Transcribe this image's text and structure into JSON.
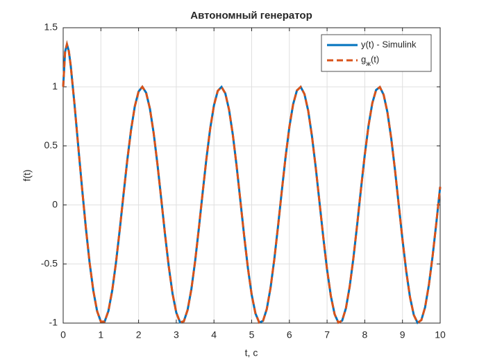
{
  "chart_data": {
    "type": "line",
    "title": "Автономный генератор",
    "xlabel": "t, c",
    "ylabel": "f(t)",
    "x": [
      0,
      0.05,
      0.1,
      0.15,
      0.2,
      0.3,
      0.4,
      0.5,
      0.6,
      0.7,
      0.8,
      0.9,
      1.0,
      1.1,
      1.2,
      1.3,
      1.4,
      1.5,
      1.6,
      1.7,
      1.8,
      1.9,
      2.0,
      2.1,
      2.2,
      2.3,
      2.4,
      2.5,
      2.6,
      2.7,
      2.8,
      2.9,
      3.0,
      3.1,
      3.2,
      3.3,
      3.4,
      3.5,
      3.6,
      3.7,
      3.8,
      3.9,
      4.0,
      4.1,
      4.2,
      4.3,
      4.4,
      4.5,
      4.6,
      4.7,
      4.8,
      4.9,
      5.0,
      5.1,
      5.2,
      5.3,
      5.4,
      5.5,
      5.6,
      5.7,
      5.8,
      5.9,
      6.0,
      6.1,
      6.2,
      6.3,
      6.4,
      6.5,
      6.6,
      6.7,
      6.8,
      6.9,
      7.0,
      7.1,
      7.2,
      7.3,
      7.4,
      7.5,
      7.6,
      7.7,
      7.8,
      7.9,
      8.0,
      8.1,
      8.2,
      8.3,
      8.4,
      8.5,
      8.6,
      8.7,
      8.8,
      8.9,
      9.0,
      9.1,
      9.2,
      9.3,
      9.4,
      9.5,
      9.6,
      9.7,
      9.8,
      9.9,
      10.0
    ],
    "series": [
      {
        "name": "y(t) - Simulink",
        "color": "#0072BD",
        "dash": false,
        "values": [
          1,
          1.296,
          1.36,
          1.302,
          1.179,
          0.853,
          0.496,
          0.144,
          -0.189,
          -0.486,
          -0.727,
          -0.899,
          -0.988,
          -0.987,
          -0.897,
          -0.726,
          -0.49,
          -0.211,
          0.087,
          0.378,
          0.635,
          0.835,
          0.96,
          1,
          0.95,
          0.816,
          0.608,
          0.346,
          0.054,
          -0.244,
          -0.519,
          -0.749,
          -0.911,
          -0.993,
          -0.985,
          -0.889,
          -0.714,
          -0.476,
          -0.194,
          0.104,
          0.393,
          0.648,
          0.844,
          0.965,
          0.999,
          0.945,
          0.806,
          0.594,
          0.331,
          0.037,
          -0.26,
          -0.534,
          -0.76,
          -0.918,
          -0.995,
          -0.982,
          -0.882,
          -0.702,
          -0.461,
          -0.178,
          0.121,
          0.409,
          0.66,
          0.853,
          0.969,
          0.999,
          0.939,
          0.796,
          0.58,
          0.315,
          0.02,
          -0.276,
          -0.548,
          -0.771,
          -0.925,
          -0.996,
          -0.979,
          -0.874,
          -0.69,
          -0.446,
          -0.162,
          0.138,
          0.424,
          0.672,
          0.862,
          0.973,
          0.998,
          0.933,
          0.786,
          0.568,
          0.3,
          0.004,
          -0.292,
          -0.562,
          -0.781,
          -0.931,
          -0.997,
          -0.975,
          -0.866,
          -0.678,
          -0.431,
          -0.146,
          0.154
        ]
      },
      {
        "name": "gж(t)",
        "color": "#D95319",
        "dash": true,
        "values": [
          1,
          1.296,
          1.36,
          1.302,
          1.179,
          0.853,
          0.496,
          0.144,
          -0.189,
          -0.486,
          -0.727,
          -0.899,
          -0.988,
          -0.987,
          -0.897,
          -0.726,
          -0.49,
          -0.211,
          0.087,
          0.378,
          0.635,
          0.835,
          0.96,
          1,
          0.95,
          0.816,
          0.608,
          0.346,
          0.054,
          -0.244,
          -0.519,
          -0.749,
          -0.911,
          -0.993,
          -0.985,
          -0.889,
          -0.714,
          -0.476,
          -0.194,
          0.104,
          0.393,
          0.648,
          0.844,
          0.965,
          0.999,
          0.945,
          0.806,
          0.594,
          0.331,
          0.037,
          -0.26,
          -0.534,
          -0.76,
          -0.918,
          -0.995,
          -0.982,
          -0.882,
          -0.702,
          -0.461,
          -0.178,
          0.121,
          0.409,
          0.66,
          0.853,
          0.969,
          0.999,
          0.939,
          0.796,
          0.58,
          0.315,
          0.02,
          -0.276,
          -0.548,
          -0.771,
          -0.925,
          -0.996,
          -0.979,
          -0.874,
          -0.69,
          -0.446,
          -0.162,
          0.138,
          0.424,
          0.672,
          0.862,
          0.973,
          0.998,
          0.933,
          0.786,
          0.568,
          0.3,
          0.004,
          -0.292,
          -0.562,
          -0.781,
          -0.931,
          -0.997,
          -0.975,
          -0.866,
          -0.678,
          -0.431,
          -0.146,
          0.154
        ]
      }
    ],
    "xlim": [
      0,
      10
    ],
    "xticks": [
      0,
      1,
      2,
      3,
      4,
      5,
      6,
      7,
      8,
      9,
      10
    ],
    "ylim": [
      -1,
      1.5
    ],
    "yticks": [
      -1,
      -0.5,
      0,
      0.5,
      1,
      1.5
    ],
    "grid": true,
    "legend": "northeast"
  }
}
